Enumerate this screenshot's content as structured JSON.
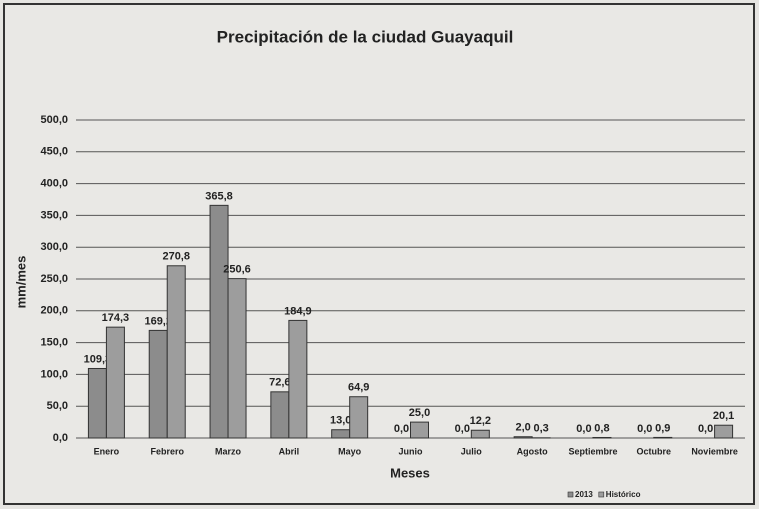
{
  "chart_data": {
    "type": "bar",
    "title": "Precipitación de la ciudad Guayaquil",
    "ylabel": "mm/mes",
    "xlabel": "Meses",
    "categories": [
      "Enero",
      "Febrero",
      "Marzo",
      "Abril",
      "Mayo",
      "Junio",
      "Julio",
      "Agosto",
      "Septiembre",
      "Octubre",
      "Noviembre"
    ],
    "series": [
      {
        "name": "2013",
        "color": "#8c8c8c",
        "values": [
          109.3,
          169.2,
          365.8,
          72.6,
          13.0,
          0.0,
          0.0,
          2.0,
          0.0,
          0.0,
          0.0
        ],
        "value_labels": [
          "109,3",
          "169,2",
          "365,8",
          "72,6",
          "13,0",
          "0,0",
          "0,0",
          "2,0",
          "0,0",
          "0,0",
          "0,0"
        ]
      },
      {
        "name": "Histórico",
        "color": "#9d9d9d",
        "values": [
          174.3,
          270.8,
          250.6,
          184.9,
          64.9,
          25.0,
          12.2,
          0.3,
          0.8,
          0.9,
          20.1
        ],
        "value_labels": [
          "174,3",
          "270,8",
          "250,6",
          "184,9",
          "64,9",
          "25,0",
          "12,2",
          "0,3",
          "0,8",
          "0,9",
          "20,1"
        ]
      }
    ],
    "ylim": [
      0,
      500
    ],
    "yticks": [
      {
        "value": 0,
        "label": "0,0"
      },
      {
        "value": 50,
        "label": "50,0"
      },
      {
        "value": 100,
        "label": "100,0"
      },
      {
        "value": 150,
        "label": "150,0"
      },
      {
        "value": 200,
        "label": "200,0"
      },
      {
        "value": 250,
        "label": "250,0"
      },
      {
        "value": 300,
        "label": "300,0"
      },
      {
        "value": 350,
        "label": "350,0"
      },
      {
        "value": 400,
        "label": "400,0"
      },
      {
        "value": 450,
        "label": "450,0"
      },
      {
        "value": 500,
        "label": "500,0"
      }
    ],
    "grid": true
  }
}
